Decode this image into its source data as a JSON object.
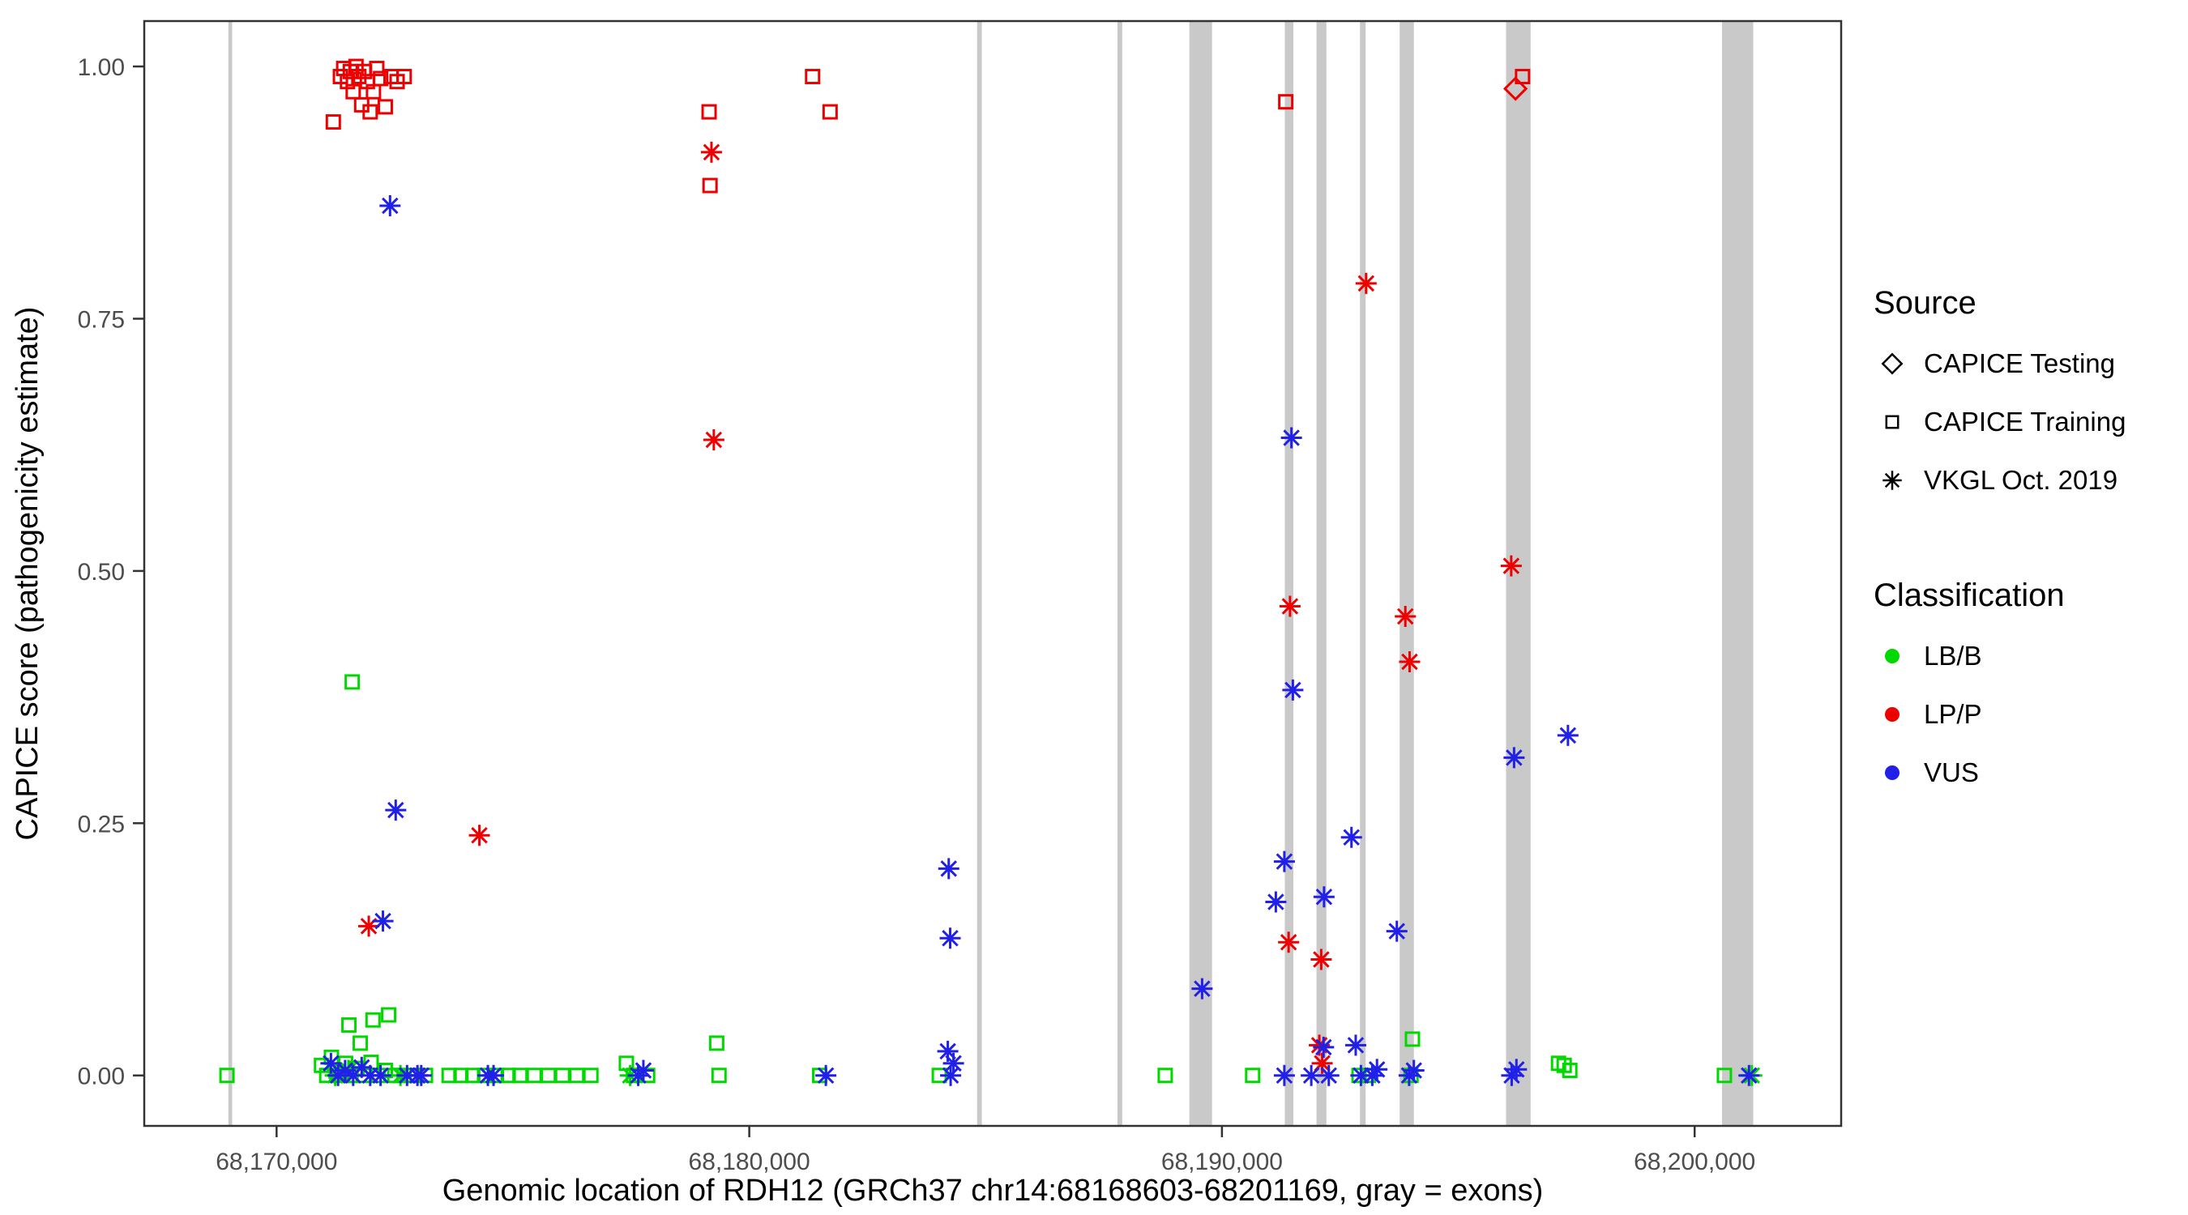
{
  "chart_data": {
    "type": "scatter",
    "title": "",
    "xlabel": "Genomic location of RDH12 (GRCh37 chr14:68168603-68201169, gray = exons)",
    "ylabel": "CAPICE score (pathogenicity estimate)",
    "xlim": [
      68167200,
      68203100
    ],
    "ylim": [
      -0.05,
      1.045
    ],
    "xticks": [
      68170000,
      68180000,
      68190000,
      68200000
    ],
    "xtick_labels": [
      "68,170,000",
      "68,180,000",
      "68,190,000",
      "68,200,000"
    ],
    "yticks": [
      0.0,
      0.25,
      0.5,
      0.75,
      1.0
    ],
    "ytick_labels": [
      "0.00",
      "0.25",
      "0.50",
      "0.75",
      "1.00"
    ],
    "grid": false,
    "panel_border_color": "#333333",
    "exon_color": "#c9c9c9",
    "colors": {
      "LB/B": "#00d800",
      "LP/P": "#ee0000",
      "VUS": "#2020e8"
    },
    "exons": [
      [
        68168980,
        68169060
      ],
      [
        68184820,
        68184920
      ],
      [
        68187790,
        68187890
      ],
      [
        68189310,
        68189790
      ],
      [
        68191330,
        68191510
      ],
      [
        68192000,
        68192210
      ],
      [
        68192920,
        68193040
      ],
      [
        68193760,
        68194060
      ],
      [
        68196010,
        68196530
      ],
      [
        68200580,
        68201240
      ]
    ],
    "series": [
      {
        "id": "capice-testing-lpp",
        "source": "CAPICE Testing",
        "classification": "LP/P",
        "marker": "diamond",
        "points": [
          [
            68196210,
            0.978
          ]
        ]
      },
      {
        "id": "capice-training-lbb",
        "source": "CAPICE Training",
        "classification": "LB/B",
        "marker": "square",
        "points": [
          [
            68168950,
            0.0
          ],
          [
            68171600,
            0.39
          ],
          [
            68171530,
            0.05
          ],
          [
            68171770,
            0.032
          ],
          [
            68172040,
            0.055
          ],
          [
            68172370,
            0.06
          ],
          [
            68170950,
            0.01
          ],
          [
            68171060,
            0.0
          ],
          [
            68171160,
            0.018
          ],
          [
            68171260,
            0.004
          ],
          [
            68171360,
            0.0
          ],
          [
            68171460,
            0.012
          ],
          [
            68171560,
            0.0
          ],
          [
            68171700,
            0.007
          ],
          [
            68171850,
            0.0
          ],
          [
            68172000,
            0.013
          ],
          [
            68172150,
            0.0
          ],
          [
            68172300,
            0.005
          ],
          [
            68172500,
            0.0
          ],
          [
            68172700,
            0.0
          ],
          [
            68172900,
            0.0
          ],
          [
            68173150,
            0.0
          ],
          [
            68173650,
            0.0
          ],
          [
            68173900,
            0.0
          ],
          [
            68174150,
            0.0
          ],
          [
            68174400,
            0.0
          ],
          [
            68174650,
            0.0
          ],
          [
            68174900,
            0.0
          ],
          [
            68175150,
            0.0
          ],
          [
            68175450,
            0.0
          ],
          [
            68175750,
            0.0
          ],
          [
            68176050,
            0.0
          ],
          [
            68176350,
            0.0
          ],
          [
            68176650,
            0.0
          ],
          [
            68177400,
            0.012
          ],
          [
            68177550,
            0.0
          ],
          [
            68177850,
            0.0
          ],
          [
            68179310,
            0.032
          ],
          [
            68179360,
            0.0
          ],
          [
            68181490,
            0.0
          ],
          [
            68184020,
            0.0
          ],
          [
            68188800,
            0.0
          ],
          [
            68190650,
            0.0
          ],
          [
            68192900,
            0.0
          ],
          [
            68193100,
            0.0
          ],
          [
            68194030,
            0.036
          ],
          [
            68194000,
            0.0
          ],
          [
            68197120,
            0.012
          ],
          [
            68197240,
            0.01
          ],
          [
            68197360,
            0.005
          ],
          [
            68200630,
            0.0
          ]
        ]
      },
      {
        "id": "capice-training-lpp",
        "source": "CAPICE Training",
        "classification": "LP/P",
        "marker": "square",
        "points": [
          [
            68171200,
            0.945
          ],
          [
            68171350,
            0.99
          ],
          [
            68171420,
            0.998
          ],
          [
            68171500,
            0.985
          ],
          [
            68171560,
            0.995
          ],
          [
            68171620,
            0.975
          ],
          [
            68171680,
            1.0
          ],
          [
            68171740,
            0.99
          ],
          [
            68171800,
            0.962
          ],
          [
            68171860,
            0.995
          ],
          [
            68171920,
            0.985
          ],
          [
            68171980,
            0.955
          ],
          [
            68172050,
            0.975
          ],
          [
            68172120,
            0.998
          ],
          [
            68172200,
            0.988
          ],
          [
            68172300,
            0.96
          ],
          [
            68172420,
            0.99
          ],
          [
            68172550,
            0.985
          ],
          [
            68172700,
            0.99
          ],
          [
            68179150,
            0.955
          ],
          [
            68179170,
            0.882
          ],
          [
            68181340,
            0.99
          ],
          [
            68181710,
            0.955
          ],
          [
            68191350,
            0.965
          ],
          [
            68196360,
            0.99
          ]
        ]
      },
      {
        "id": "vkgl-lbb",
        "source": "VKGL Oct. 2019",
        "classification": "LB/B",
        "marker": "asterisk",
        "points": [
          [
            68171240,
            0.0
          ],
          [
            68171520,
            0.005
          ],
          [
            68172620,
            0.0
          ],
          [
            68177480,
            0.0
          ],
          [
            68201210,
            0.0
          ]
        ]
      },
      {
        "id": "vkgl-lpp",
        "source": "VKGL Oct. 2019",
        "classification": "LP/P",
        "marker": "asterisk",
        "points": [
          [
            68171950,
            0.148
          ],
          [
            68174290,
            0.238
          ],
          [
            68179200,
            0.915
          ],
          [
            68179250,
            0.63
          ],
          [
            68191440,
            0.465
          ],
          [
            68191410,
            0.132
          ],
          [
            68192100,
            0.115
          ],
          [
            68192060,
            0.03
          ],
          [
            68192120,
            0.012
          ],
          [
            68193050,
            0.785
          ],
          [
            68193880,
            0.455
          ],
          [
            68193970,
            0.41
          ],
          [
            68196120,
            0.505
          ]
        ]
      },
      {
        "id": "vkgl-vus",
        "source": "VKGL Oct. 2019",
        "classification": "VUS",
        "marker": "asterisk",
        "points": [
          [
            68172400,
            0.862
          ],
          [
            68172520,
            0.263
          ],
          [
            68172250,
            0.153
          ],
          [
            68184220,
            0.205
          ],
          [
            68184250,
            0.136
          ],
          [
            68184200,
            0.024
          ],
          [
            68184320,
            0.012
          ],
          [
            68184260,
            0.0
          ],
          [
            68189580,
            0.086
          ],
          [
            68191470,
            0.632
          ],
          [
            68191500,
            0.382
          ],
          [
            68191320,
            0.212
          ],
          [
            68191140,
            0.172
          ],
          [
            68192160,
            0.177
          ],
          [
            68192740,
            0.236
          ],
          [
            68193700,
            0.143
          ],
          [
            68196180,
            0.315
          ],
          [
            68197320,
            0.337
          ],
          [
            68171150,
            0.012
          ],
          [
            68171300,
            0.0
          ],
          [
            68171450,
            0.005
          ],
          [
            68171620,
            0.0
          ],
          [
            68171800,
            0.008
          ],
          [
            68171980,
            0.0
          ],
          [
            68172200,
            0.0
          ],
          [
            68172760,
            0.0
          ],
          [
            68172980,
            0.0
          ],
          [
            68173060,
            0.0
          ],
          [
            68174470,
            0.0
          ],
          [
            68174590,
            0.0
          ],
          [
            68177650,
            0.0
          ],
          [
            68177760,
            0.005
          ],
          [
            68181620,
            0.0
          ],
          [
            68191320,
            0.0
          ],
          [
            68191890,
            0.0
          ],
          [
            68192150,
            0.028
          ],
          [
            68192260,
            0.0
          ],
          [
            68192830,
            0.03
          ],
          [
            68192940,
            0.0
          ],
          [
            68193180,
            0.0
          ],
          [
            68193280,
            0.006
          ],
          [
            68193960,
            0.0
          ],
          [
            68194060,
            0.005
          ],
          [
            68196130,
            0.0
          ],
          [
            68196230,
            0.006
          ],
          [
            68201150,
            0.0
          ]
        ]
      }
    ]
  },
  "legend": {
    "source_title": "Source",
    "source_items": [
      {
        "label": "CAPICE Testing",
        "marker": "diamond"
      },
      {
        "label": "CAPICE Training",
        "marker": "square"
      },
      {
        "label": "VKGL Oct. 2019",
        "marker": "asterisk"
      }
    ],
    "classification_title": "Classification",
    "classification_items": [
      {
        "label": "LB/B",
        "color": "#00d800"
      },
      {
        "label": "LP/P",
        "color": "#ee0000"
      },
      {
        "label": "VUS",
        "color": "#2020e8"
      }
    ]
  }
}
